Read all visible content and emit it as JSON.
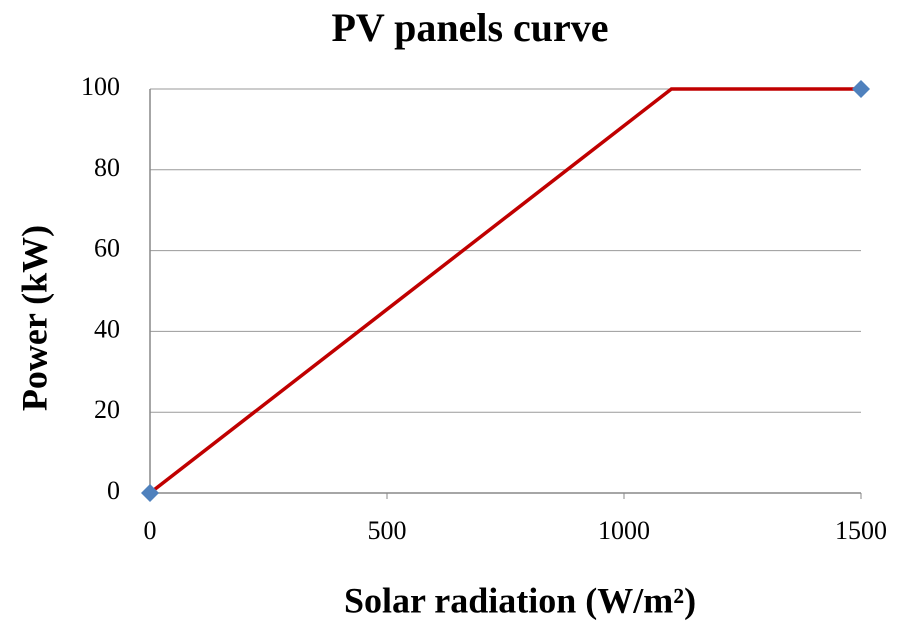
{
  "chart_data": {
    "type": "line",
    "title": "PV panels curve",
    "x_label": "Solar radiation (W/m²)",
    "y_label": "Power (kW)",
    "series": [
      {
        "color": "#c00000",
        "x": [
          0,
          1100,
          1500
        ],
        "values": [
          0,
          100,
          100
        ]
      },
      {
        "color": "#4f81bd",
        "marker": "diamond",
        "line": false,
        "x": [
          0,
          1500
        ],
        "values": [
          0,
          100
        ]
      }
    ],
    "xlim": [
      0,
      1500
    ],
    "xticks": [
      0,
      500,
      1000,
      1500
    ],
    "ylim": [
      0,
      100
    ],
    "yticks": [
      0,
      20,
      40,
      60,
      80,
      100
    ],
    "grid": true
  }
}
